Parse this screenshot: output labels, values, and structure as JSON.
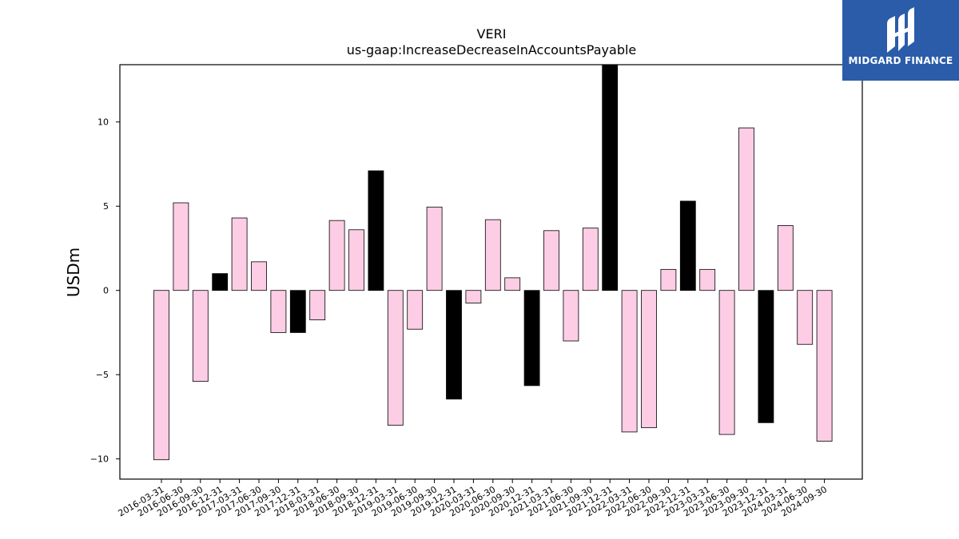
{
  "chart_data": {
    "type": "bar",
    "title": "VERI",
    "subtitle": "us-gaap:IncreaseDecreaseInAccountsPayable",
    "xlabel": "",
    "ylabel": "USDm",
    "ylim": [
      -11.2,
      13.4
    ],
    "yticks": [
      -10,
      -5,
      0,
      5,
      10
    ],
    "yticklabels": [
      "−10",
      "−5",
      "0",
      "5",
      "10"
    ],
    "grid": false,
    "colors": {
      "normal": "#fccde5",
      "highlight": "#000000",
      "edge": "#000000"
    },
    "categories": [
      "2016-03-31",
      "2016-06-30",
      "2016-09-30",
      "2016-12-31",
      "2017-03-31",
      "2017-06-30",
      "2017-09-30",
      "2017-12-31",
      "2018-03-31",
      "2018-06-30",
      "2018-09-30",
      "2018-12-31",
      "2019-03-31",
      "2019-06-30",
      "2019-09-30",
      "2019-12-31",
      "2020-03-31",
      "2020-06-30",
      "2020-09-30",
      "2020-12-31",
      "2021-03-31",
      "2021-06-30",
      "2021-09-30",
      "2021-12-31",
      "2022-03-31",
      "2022-06-30",
      "2022-09-30",
      "2022-12-31",
      "2023-03-31",
      "2023-06-30",
      "2023-09-30",
      "2023-12-31",
      "2024-03-31",
      "2024-06-30",
      "2024-09-30"
    ],
    "values": [
      -10.05,
      5.2,
      -5.4,
      1.0,
      4.3,
      1.7,
      -2.5,
      -2.5,
      -1.75,
      4.15,
      3.6,
      7.1,
      -8.0,
      -2.3,
      4.95,
      -6.45,
      -0.75,
      4.2,
      0.75,
      -5.65,
      3.55,
      -3.0,
      3.7,
      13.4,
      -8.4,
      -8.15,
      1.25,
      5.3,
      1.25,
      -8.55,
      9.65,
      -7.85,
      3.85,
      -3.2,
      -8.95
    ],
    "highlight": [
      false,
      false,
      false,
      true,
      false,
      false,
      false,
      true,
      false,
      false,
      false,
      true,
      false,
      false,
      false,
      true,
      false,
      false,
      false,
      true,
      false,
      false,
      false,
      true,
      false,
      false,
      false,
      true,
      false,
      false,
      false,
      true,
      false,
      false,
      false
    ]
  },
  "logo": {
    "text": "MIDGARD FINANCE",
    "background": "#2a5caa"
  }
}
